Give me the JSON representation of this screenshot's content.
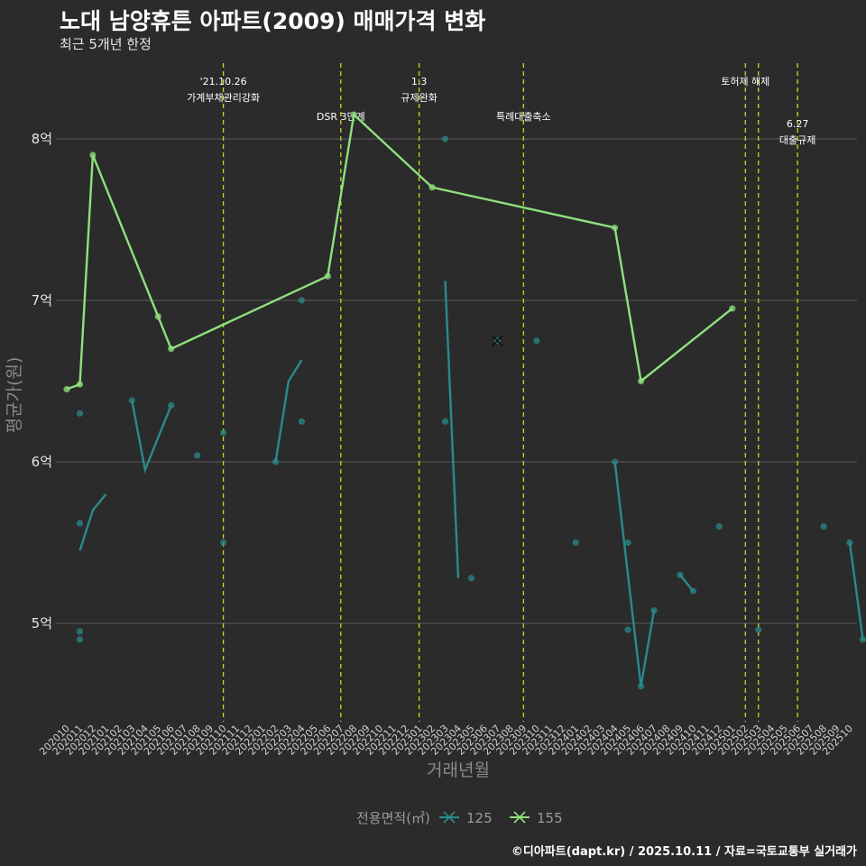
{
  "chart_data": {
    "type": "line",
    "title": "노대 남양휴튼 아파트(2009) 매매가격 변화",
    "subtitle": "최근 5개년 한정",
    "caption": "©디아파트(dapt.kr) / 2025.10.11 / 자료=국토교통부 실거래가",
    "xlabel": "거래년월",
    "ylabel": "평균가(원)",
    "ylim": [
      4.45,
      8.35
    ],
    "yticks": [
      {
        "v": 5,
        "label": "5억"
      },
      {
        "v": 6,
        "label": "6억"
      },
      {
        "v": 7,
        "label": "7억"
      },
      {
        "v": 8,
        "label": "8억"
      }
    ],
    "categories": [
      "202010",
      "202011",
      "202012",
      "202101",
      "202102",
      "202103",
      "202104",
      "202105",
      "202106",
      "202107",
      "202108",
      "202109",
      "202110",
      "202111",
      "202112",
      "202201",
      "202202",
      "202203",
      "202204",
      "202205",
      "202206",
      "202207",
      "202208",
      "202209",
      "202210",
      "202211",
      "202212",
      "202301",
      "202302",
      "202303",
      "202304",
      "202305",
      "202306",
      "202307",
      "202308",
      "202309",
      "202310",
      "202311",
      "202312",
      "202401",
      "202402",
      "202403",
      "202404",
      "202405",
      "202406",
      "202407",
      "202408",
      "202409",
      "202410",
      "202411",
      "202412",
      "202501",
      "202502",
      "202503",
      "202504",
      "202505",
      "202506",
      "202507",
      "202508",
      "202509",
      "202510"
    ],
    "events": [
      {
        "x": 12.0,
        "lines": [
          "'21.10.26",
          "가계부채관리강화"
        ],
        "level": 0
      },
      {
        "x": 21.0,
        "lines": [
          "DSR 3단계"
        ],
        "level": 1
      },
      {
        "x": 27.0,
        "lines": [
          "1.3",
          "규제완화"
        ],
        "level": 0
      },
      {
        "x": 35.0,
        "lines": [
          "특례대출축소"
        ],
        "level": 1
      },
      {
        "x": 52.0,
        "lines": [
          "토허제 해제"
        ],
        "level": 0
      },
      {
        "x": 53.0,
        "lines": [],
        "level": 0
      },
      {
        "x": 56.0,
        "lines": [
          "6.27",
          "대출규제"
        ],
        "level": 2
      }
    ],
    "series": [
      {
        "name": "125",
        "color": "#2a8a8c",
        "points": [
          [
            1,
            6.3
          ],
          [
            1,
            5.62
          ],
          [
            1,
            4.95
          ],
          [
            1,
            4.9
          ],
          [
            5,
            6.38
          ],
          [
            8,
            6.35
          ],
          [
            10,
            6.04
          ],
          [
            12,
            6.18
          ],
          [
            12,
            5.5
          ],
          [
            16,
            6.0
          ],
          [
            18,
            6.25
          ],
          [
            18,
            7.0
          ],
          [
            29,
            8.0
          ],
          [
            29,
            6.25
          ],
          [
            31,
            5.28
          ],
          [
            33,
            6.75
          ],
          [
            36,
            6.75
          ],
          [
            39,
            5.5
          ],
          [
            42,
            6.0
          ],
          [
            43,
            5.5
          ],
          [
            43,
            4.96
          ],
          [
            44,
            4.61
          ],
          [
            45,
            5.08
          ],
          [
            47,
            5.3
          ],
          [
            48,
            5.2
          ],
          [
            50,
            5.6
          ],
          [
            53,
            4.96
          ],
          [
            58,
            5.6
          ],
          [
            60,
            5.5
          ],
          [
            61,
            4.9
          ]
        ],
        "lines": [
          [
            [
              1,
              5.45
            ],
            [
              2,
              5.7
            ],
            [
              3,
              5.8
            ]
          ],
          [
            [
              5,
              6.38
            ],
            [
              6,
              5.95
            ],
            [
              8,
              6.35
            ]
          ],
          [
            [
              16,
              6.0
            ],
            [
              17,
              6.5
            ],
            [
              18,
              6.63
            ]
          ],
          [
            [
              29,
              7.12
            ],
            [
              30,
              5.28
            ]
          ],
          [
            [
              42,
              6.0
            ],
            [
              43,
              5.3
            ],
            [
              44,
              4.61
            ],
            [
              45,
              5.08
            ]
          ],
          [
            [
              47,
              5.3
            ],
            [
              48,
              5.2
            ]
          ],
          [
            [
              60,
              5.5
            ],
            [
              61,
              4.9
            ]
          ]
        ],
        "crosses": [
          [
            33,
            6.75
          ]
        ]
      },
      {
        "name": "155",
        "color": "#8fe07f",
        "points": [
          [
            0,
            6.45
          ],
          [
            1,
            6.48
          ],
          [
            2,
            7.9
          ],
          [
            7,
            6.9
          ],
          [
            8,
            6.7
          ],
          [
            20,
            7.15
          ],
          [
            22,
            8.15
          ],
          [
            28,
            7.7
          ],
          [
            42,
            7.45
          ],
          [
            44,
            6.5
          ],
          [
            51,
            6.95
          ]
        ],
        "lines": [
          [
            [
              0,
              6.45
            ],
            [
              1,
              6.48
            ],
            [
              2,
              7.9
            ],
            [
              7,
              6.9
            ],
            [
              8,
              6.7
            ],
            [
              20,
              7.15
            ],
            [
              22,
              8.15
            ],
            [
              28,
              7.7
            ],
            [
              42,
              7.45
            ],
            [
              44,
              6.5
            ],
            [
              51,
              6.95
            ]
          ]
        ],
        "crosses": []
      }
    ],
    "legend": {
      "title": "전용면적(㎡)",
      "entries": [
        "125",
        "155"
      ],
      "position": "bottom"
    }
  },
  "colors": {
    "background": "#2b2b2b",
    "grid": "#5a5a5a",
    "event_line": "#c7d91a"
  }
}
